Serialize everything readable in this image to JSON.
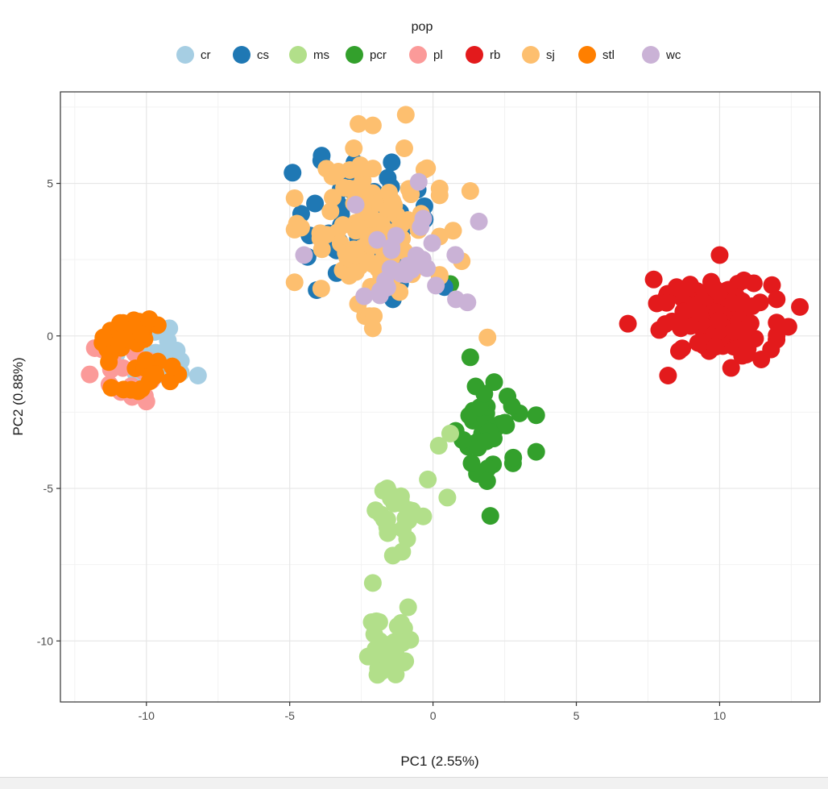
{
  "chart_data": {
    "type": "scatter",
    "title": "",
    "xlabel": "PC1 (2.55%)",
    "ylabel": "PC2 (0.88%)",
    "xlim": [
      -13,
      13.5
    ],
    "ylim": [
      -12,
      8
    ],
    "xticks": [
      -10,
      -5,
      0,
      5,
      10
    ],
    "yticks": [
      -10,
      -5,
      0,
      5
    ],
    "grid": true,
    "legend": {
      "title": "pop",
      "position": "top"
    },
    "series": [
      {
        "name": "cr",
        "color": "#a6cee3",
        "clusters": [
          {
            "cx": -10.2,
            "cy": -0.7,
            "sx": 0.7,
            "sy": 0.45,
            "n": 14
          }
        ],
        "points": [
          [
            -9.2,
            0.25
          ],
          [
            -8.2,
            -1.3
          ],
          [
            -8.8,
            -1.2
          ],
          [
            -9.7,
            -1.0
          ]
        ]
      },
      {
        "name": "cs",
        "color": "#1f78b4",
        "clusters": [
          {
            "cx": -2.6,
            "cy": 3.6,
            "sx": 1.05,
            "sy": 1.05,
            "n": 48
          }
        ],
        "points": [
          [
            -4.9,
            5.35
          ],
          [
            -4.6,
            4.0
          ],
          [
            -3.9,
            5.75
          ],
          [
            -1.4,
            1.2
          ],
          [
            0.4,
            1.6
          ],
          [
            -0.3,
            4.25
          ],
          [
            -1.0,
            2.6
          ]
        ]
      },
      {
        "name": "ms",
        "color": "#b2df8a",
        "clusters": [
          {
            "cx": -1.5,
            "cy": -10.0,
            "sx": 0.45,
            "sy": 0.55,
            "n": 30
          },
          {
            "cx": -1.1,
            "cy": -5.6,
            "sx": 0.45,
            "sy": 0.75,
            "n": 24
          }
        ],
        "points": [
          [
            -2.1,
            -8.1
          ],
          [
            -1.4,
            -7.2
          ],
          [
            0.5,
            -5.3
          ],
          [
            0.2,
            -3.6
          ],
          [
            0.6,
            -3.2
          ],
          [
            -1.8,
            -11.0
          ],
          [
            -1.3,
            -11.1
          ]
        ]
      },
      {
        "name": "pcr",
        "color": "#33a02c",
        "clusters": [
          {
            "cx": 2.0,
            "cy": -3.0,
            "sx": 0.55,
            "sy": 0.85,
            "n": 42
          }
        ],
        "points": [
          [
            1.3,
            -0.7
          ],
          [
            2.0,
            -5.9
          ],
          [
            3.6,
            -3.8
          ],
          [
            3.6,
            -2.6
          ],
          [
            0.6,
            1.7
          ]
        ]
      },
      {
        "name": "pl",
        "color": "#fb9a99",
        "clusters": [
          {
            "cx": -10.9,
            "cy": -1.1,
            "sx": 0.55,
            "sy": 0.45,
            "n": 16
          }
        ],
        "points": [
          [
            -11.8,
            -0.4
          ],
          [
            -10.0,
            -2.15
          ],
          [
            -10.5,
            -2.0
          ],
          [
            -11.2,
            -1.7
          ]
        ]
      },
      {
        "name": "rb",
        "color": "#e31a1c",
        "clusters": [
          {
            "cx": 9.9,
            "cy": 0.5,
            "sx": 0.95,
            "sy": 0.6,
            "n": 120
          }
        ],
        "points": [
          [
            6.8,
            0.4
          ],
          [
            8.2,
            -1.3
          ],
          [
            12.8,
            0.95
          ],
          [
            12.4,
            0.3
          ],
          [
            10.0,
            2.65
          ],
          [
            7.7,
            1.85
          ],
          [
            10.4,
            -1.05
          ],
          [
            8.5,
            1.6
          ]
        ]
      },
      {
        "name": "sj",
        "color": "#fdbf6f",
        "clusters": [
          {
            "cx": -2.3,
            "cy": 3.4,
            "sx": 1.15,
            "sy": 1.25,
            "n": 110
          }
        ],
        "points": [
          [
            -0.95,
            7.25
          ],
          [
            -2.6,
            6.95
          ],
          [
            -2.1,
            6.9
          ],
          [
            1.3,
            4.75
          ],
          [
            1.9,
            -0.05
          ],
          [
            -2.1,
            0.25
          ],
          [
            -4.6,
            3.55
          ],
          [
            0.7,
            3.45
          ],
          [
            1.0,
            2.45
          ],
          [
            -0.3,
            5.45
          ],
          [
            -3.9,
            1.55
          ]
        ]
      },
      {
        "name": "stl",
        "color": "#ff7f00",
        "clusters": [
          {
            "cx": -10.7,
            "cy": 0.05,
            "sx": 0.55,
            "sy": 0.3,
            "n": 26
          },
          {
            "cx": -10.1,
            "cy": -1.35,
            "sx": 0.55,
            "sy": 0.3,
            "n": 16
          }
        ],
        "points": [
          [
            -9.1,
            -1.0
          ],
          [
            -11.5,
            -0.05
          ],
          [
            -9.9,
            0.55
          ]
        ]
      },
      {
        "name": "wc",
        "color": "#cab2d6",
        "clusters": [
          {
            "cx": -1.2,
            "cy": 2.4,
            "sx": 0.9,
            "sy": 0.8,
            "n": 24
          }
        ],
        "points": [
          [
            1.6,
            3.75
          ],
          [
            -0.5,
            5.05
          ],
          [
            -2.7,
            4.3
          ],
          [
            -4.5,
            2.65
          ],
          [
            1.2,
            1.1
          ],
          [
            0.8,
            1.2
          ],
          [
            -2.4,
            1.3
          ],
          [
            0.1,
            1.65
          ]
        ]
      }
    ]
  }
}
